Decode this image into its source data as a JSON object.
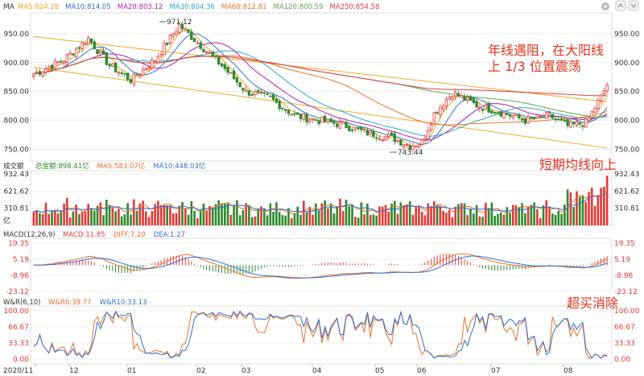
{
  "colors": {
    "up": "#e53935",
    "down": "#2e8b2e",
    "grid": "#ececec",
    "axis_text": "#333333",
    "annotation": "#e8331c",
    "channel": "#f5a623"
  },
  "main_panel": {
    "indicator": "MA",
    "ma_legend": [
      {
        "label": "MA5:824.28",
        "color": "#f5a623"
      },
      {
        "label": "MA10:814.05",
        "color": "#2f6fd6"
      },
      {
        "label": "MA20:803.12",
        "color": "#b01fb0"
      },
      {
        "label": "MA30:804.36",
        "color": "#27a9c9"
      },
      {
        "label": "MA60:812.81",
        "color": "#e8722a"
      },
      {
        "label": "MA120:800.59",
        "color": "#5aa84a"
      },
      {
        "label": "MA250:854.58",
        "color": "#d84040"
      }
    ],
    "y_ticks_left": [
      "950.00",
      "900.00",
      "850.00",
      "800.00",
      "750.00"
    ],
    "y_ticks_right": [
      "950.00",
      "900.00",
      "850.00",
      "800.00",
      "750.00"
    ],
    "high_label": "971.12",
    "low_label": "743.44",
    "annotation_1": [
      "年线遇阻，在大阳线",
      "上 1/3 位置震荡"
    ]
  },
  "volume_panel": {
    "title": "成交额",
    "legend": [
      {
        "label": "总金额:898.41亿",
        "color": "#2e8b2e"
      },
      {
        "label": "MA5:583.07亿",
        "color": "#e8722a"
      },
      {
        "label": "MA10:448.03亿",
        "color": "#2f6fd6"
      }
    ],
    "y_ticks_left": [
      "932.43",
      "621.62",
      "310.81"
    ],
    "y_ticks_right": [
      "932.43",
      "621.62",
      "310.81"
    ],
    "unit": "亿",
    "annotation": "短期均线向上"
  },
  "macd_panel": {
    "title": "MACD(12,26,9)",
    "legend": [
      {
        "label": "MACD:11.85",
        "color": "#e53935"
      },
      {
        "label": "DIFF:7.20",
        "color": "#e8722a"
      },
      {
        "label": "DEA:1.27",
        "color": "#2f6fd6"
      }
    ],
    "y_ticks_left": [
      "19.35",
      "5.19",
      "-8.96",
      "-23.12"
    ],
    "y_ticks_right": [
      "19.35",
      "5.19",
      "-8.96",
      "-23.12"
    ]
  },
  "wr_panel": {
    "title": "W&R(6,10)",
    "legend": [
      {
        "label": "W&R6:39.77",
        "color": "#e8722a"
      },
      {
        "label": "W&R10:33.13",
        "color": "#2f6fd6"
      }
    ],
    "y_ticks_left": [
      "100.00",
      "66.67",
      "33.33",
      "0.00"
    ],
    "y_ticks_right": [
      "100.00",
      "66.67",
      "33.33",
      "0.00"
    ],
    "annotation": "超买消除"
  },
  "x_axis_labels": [
    "2020/11",
    "12",
    "01",
    "02",
    "03",
    "04",
    "05",
    "06",
    "07",
    "08"
  ],
  "chart_data": {
    "type": "candlestick",
    "bars": 190,
    "price_range": [
      735,
      975
    ],
    "volume_range": [
      0,
      932.43
    ],
    "macd_range": [
      -23.12,
      19.35
    ],
    "wr_range": [
      0,
      100
    ],
    "anchors": [
      [
        0,
        880
      ],
      [
        10,
        905
      ],
      [
        18,
        942
      ],
      [
        25,
        895
      ],
      [
        32,
        870
      ],
      [
        40,
        905
      ],
      [
        48,
        965
      ],
      [
        55,
        930
      ],
      [
        62,
        895
      ],
      [
        70,
        850
      ],
      [
        78,
        838
      ],
      [
        86,
        808
      ],
      [
        94,
        800
      ],
      [
        102,
        792
      ],
      [
        110,
        778
      ],
      [
        118,
        770
      ],
      [
        124,
        756
      ],
      [
        128,
        762
      ],
      [
        132,
        812
      ],
      [
        138,
        848
      ],
      [
        146,
        826
      ],
      [
        154,
        814
      ],
      [
        162,
        800
      ],
      [
        170,
        808
      ],
      [
        176,
        790
      ],
      [
        182,
        796
      ],
      [
        187,
        840
      ],
      [
        189,
        862
      ]
    ],
    "channel_upper": [
      [
        0,
        945
      ],
      [
        189,
        832
      ]
    ],
    "channel_lower": [
      [
        0,
        892
      ],
      [
        189,
        752
      ]
    ],
    "last_values": {
      "MA5": 824.28,
      "MA10": 814.05,
      "MA20": 803.12,
      "MA30": 804.36,
      "MA60": 812.81,
      "MA120": 800.59,
      "MA250": 854.58,
      "turnover": 898.41,
      "MACD": 11.85,
      "DIFF": 7.2,
      "DEA": 1.27,
      "WR6": 39.77,
      "WR10": 33.13
    }
  }
}
